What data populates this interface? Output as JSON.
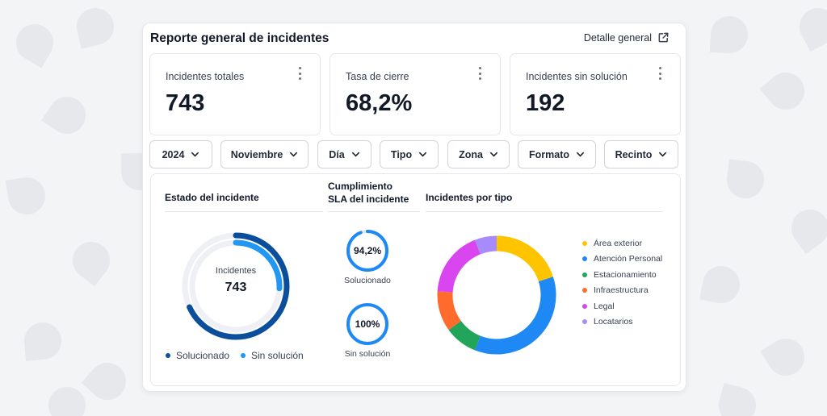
{
  "report": {
    "title": "Reporte general de incidentes",
    "detail_link": "Detalle general",
    "detail_icon": "external-link-icon"
  },
  "kpis": [
    {
      "label": "Incidentes totales",
      "value": "743"
    },
    {
      "label": "Tasa de cierre",
      "value": "68,2%"
    },
    {
      "label": "Incidentes sin solución",
      "value": "192"
    }
  ],
  "filters": [
    {
      "label": "2024"
    },
    {
      "label": "Noviembre"
    },
    {
      "label": "Día"
    },
    {
      "label": "Tipo"
    },
    {
      "label": "Zona"
    },
    {
      "label": "Formato"
    },
    {
      "label": "Recinto"
    }
  ],
  "estado": {
    "title": "Estado del incidente",
    "center_label": "Incidentes",
    "center_value": "743",
    "solucionado_fraction": 0.682,
    "sin_solucion_fraction": 0.258,
    "legend": [
      {
        "label": "Solucionado",
        "color": "#0b4f9c"
      },
      {
        "label": "Sin solución",
        "color": "#2196f3"
      }
    ]
  },
  "sla": {
    "title_line1": "Cumplimiento",
    "title_line2": "SLA del incidente",
    "gauges": [
      {
        "value": "94,2%",
        "fraction": 0.942,
        "caption": "Solucionado"
      },
      {
        "value": "100%",
        "fraction": 1.0,
        "caption": "Sin solución"
      }
    ],
    "color": "#1e88f5"
  },
  "tipo": {
    "title": "Incidentes por tipo",
    "slices": [
      {
        "label": "Área exterior",
        "value": 20,
        "color": "#ffc400"
      },
      {
        "label": "Atención Personal",
        "value": 36,
        "color": "#1e88f5"
      },
      {
        "label": "Estacionamiento",
        "value": 9,
        "color": "#22a55b"
      },
      {
        "label": "Infraestructura",
        "value": 11,
        "color": "#ff6b2c"
      },
      {
        "label": "Legal",
        "value": 18,
        "color": "#d946ef"
      },
      {
        "label": "Locatarios",
        "value": 6,
        "color": "#a78bfa"
      }
    ]
  }
}
